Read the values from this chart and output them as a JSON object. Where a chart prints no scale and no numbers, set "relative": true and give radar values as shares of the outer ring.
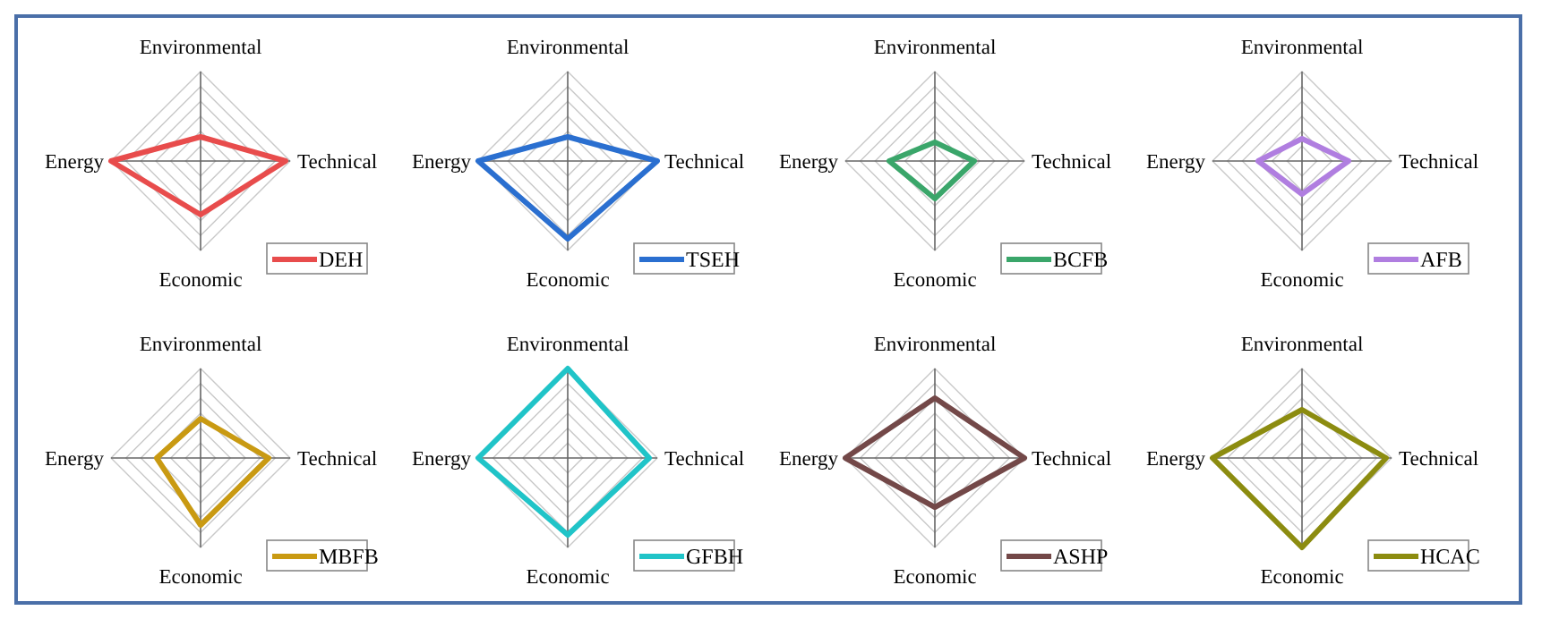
{
  "chart_data": [
    {
      "type": "radar",
      "relative": true,
      "grid": true,
      "legend": "bottom right",
      "categories": [
        "Environmental",
        "Technical",
        "Economic",
        "Energy"
      ],
      "series": [
        {
          "name": "DEH",
          "color": "#e84c4c",
          "values": [
            0.27,
            0.95,
            0.6,
            1
          ]
        }
      ]
    },
    {
      "type": "radar",
      "relative": true,
      "grid": true,
      "legend": "bottom right",
      "categories": [
        "Environmental",
        "Technical",
        "Economic",
        "Energy"
      ],
      "series": [
        {
          "name": "TSEH",
          "color": "#2a6fd0",
          "values": [
            0.27,
            1,
            0.87,
            1
          ]
        }
      ]
    },
    {
      "type": "radar",
      "relative": true,
      "grid": true,
      "legend": "bottom right",
      "categories": [
        "Environmental",
        "Technical",
        "Economic",
        "Energy"
      ],
      "series": [
        {
          "name": "BCFB",
          "color": "#3aa66a",
          "values": [
            0.21,
            0.44,
            0.42,
            0.51
          ]
        }
      ]
    },
    {
      "type": "radar",
      "relative": true,
      "grid": true,
      "legend": "bottom right",
      "categories": [
        "Environmental",
        "Technical",
        "Economic",
        "Energy"
      ],
      "series": [
        {
          "name": "AFB",
          "color": "#b07ee0",
          "values": [
            0.25,
            0.52,
            0.37,
            0.49
          ]
        }
      ]
    },
    {
      "type": "radar",
      "relative": true,
      "grid": true,
      "legend": "bottom right",
      "categories": [
        "Environmental",
        "Technical",
        "Economic",
        "Energy"
      ],
      "series": [
        {
          "name": "MBFB",
          "color": "#c99a12",
          "values": [
            0.44,
            0.76,
            0.75,
            0.49
          ]
        }
      ]
    },
    {
      "type": "radar",
      "relative": true,
      "grid": true,
      "legend": "bottom right",
      "categories": [
        "Environmental",
        "Technical",
        "Economic",
        "Energy"
      ],
      "series": [
        {
          "name": "GFBH",
          "color": "#20c4c8",
          "values": [
            1,
            0.91,
            0.86,
            1
          ]
        }
      ]
    },
    {
      "type": "radar",
      "relative": true,
      "grid": true,
      "legend": "bottom right",
      "categories": [
        "Environmental",
        "Technical",
        "Economic",
        "Energy"
      ],
      "series": [
        {
          "name": "ASHP",
          "color": "#734848",
          "values": [
            0.67,
            1,
            0.55,
            1
          ]
        }
      ]
    },
    {
      "type": "radar",
      "relative": true,
      "grid": true,
      "legend": "bottom right",
      "categories": [
        "Environmental",
        "Technical",
        "Economic",
        "Energy"
      ],
      "series": [
        {
          "name": "HCAC",
          "color": "#8c8c10",
          "values": [
            0.54,
            0.94,
            1,
            1
          ]
        }
      ]
    }
  ]
}
